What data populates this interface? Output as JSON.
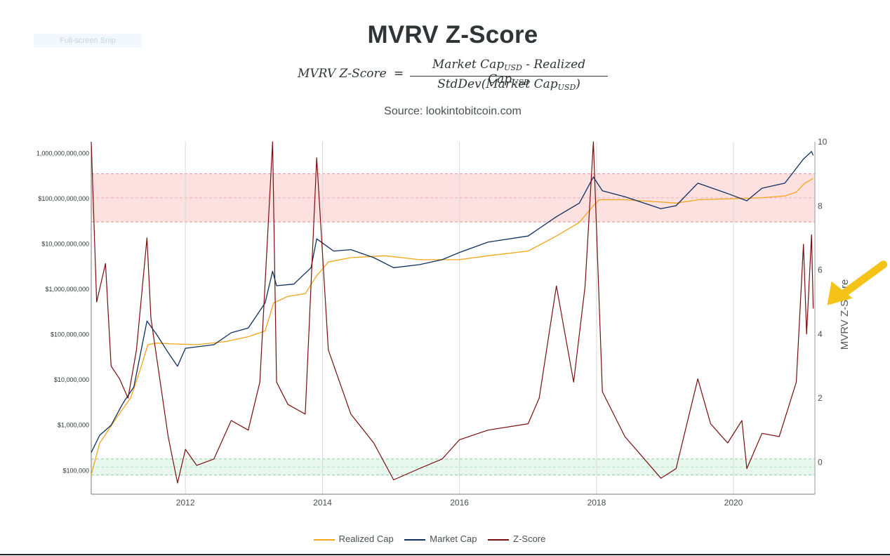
{
  "page": {
    "snip_label": "Full-screen Snip"
  },
  "header": {
    "title": "MVRV Z-Score",
    "formula": {
      "lhs": "MVRV Z-Score",
      "eq": "=",
      "num_a": "Market Cap",
      "num_op": " - ",
      "num_b": "Realized Cap",
      "den_a": "StdDev(Market Cap",
      "den_close": ")",
      "sub": "USD"
    },
    "source": "Source: lookintobitcoin.com"
  },
  "chart_data": {
    "type": "line",
    "title": "MVRV Z-Score",
    "subtitle": "Source: lookintobitcoin.com",
    "xlabel": "",
    "ylabel_left": "",
    "ylabel_right": "MVRV Z-Score",
    "x_range": [
      "2010-08-17",
      "2021-03-10"
    ],
    "x_ticks": [
      {
        "label": "2012",
        "date": "2012-01-01"
      },
      {
        "label": "2014",
        "date": "2014-01-01"
      },
      {
        "label": "2016",
        "date": "2016-01-01"
      },
      {
        "label": "2018",
        "date": "2018-01-01"
      },
      {
        "label": "2020",
        "date": "2020-01-01"
      }
    ],
    "left_axis": {
      "scale": "log",
      "range": [
        30000,
        1800000000000
      ],
      "ticks": [
        {
          "label": "$100,000",
          "value": 100000
        },
        {
          "label": "$1,000,000",
          "value": 1000000
        },
        {
          "label": "$10,000,000",
          "value": 10000000
        },
        {
          "label": "$100,000,000",
          "value": 100000000
        },
        {
          "label": "$1,000,000,000",
          "value": 1000000000
        },
        {
          "label": "$10,000,000,000",
          "value": 10000000000
        },
        {
          "label": "$100,000,000,000",
          "value": 100000000000
        },
        {
          "label": "1,000,000,000,000",
          "value": 1000000000000
        }
      ]
    },
    "right_axis": {
      "scale": "linear",
      "range": [
        -1.0,
        10.0
      ],
      "ticks": [
        0,
        2,
        4,
        6,
        8,
        10
      ]
    },
    "grid_x": true,
    "bands": [
      {
        "zone": "red",
        "from": 7.5,
        "to": 9.0,
        "mid": 8.25,
        "color": "#fde0e0",
        "line": "#e0868a"
      },
      {
        "zone": "green",
        "from": -0.4,
        "to": 0.1,
        "mid": -0.15,
        "color": "#e8f8ef",
        "line": "#7ccf96"
      }
    ],
    "legend_position": "bottom-center",
    "annotation": {
      "type": "arrow",
      "color": "#f5c218",
      "points_to": {
        "date": "2021-03-01",
        "z": 4.9
      }
    },
    "series": [
      {
        "name": "Realized Cap",
        "color": "#f4a518",
        "axis": "left",
        "points": [
          [
            "2010-08-17",
            80000
          ],
          [
            "2010-10-01",
            400000
          ],
          [
            "2011-01-01",
            1500000
          ],
          [
            "2011-03-15",
            4000000
          ],
          [
            "2011-05-01",
            15000000
          ],
          [
            "2011-06-15",
            60000000
          ],
          [
            "2011-08-01",
            65000000
          ],
          [
            "2011-11-01",
            62000000
          ],
          [
            "2012-03-01",
            60000000
          ],
          [
            "2012-08-01",
            70000000
          ],
          [
            "2012-12-01",
            90000000
          ],
          [
            "2013-03-01",
            120000000
          ],
          [
            "2013-04-15",
            500000000
          ],
          [
            "2013-07-01",
            700000000
          ],
          [
            "2013-10-01",
            800000000
          ],
          [
            "2013-12-01",
            2000000000
          ],
          [
            "2014-02-01",
            4000000000
          ],
          [
            "2014-06-01",
            5000000000
          ],
          [
            "2014-12-01",
            5500000000
          ],
          [
            "2015-06-01",
            4500000000
          ],
          [
            "2016-01-01",
            4500000000
          ],
          [
            "2016-06-01",
            5500000000
          ],
          [
            "2017-01-01",
            7000000000
          ],
          [
            "2017-06-01",
            15000000000
          ],
          [
            "2017-10-01",
            30000000000
          ],
          [
            "2017-12-15",
            70000000000
          ],
          [
            "2018-01-15",
            95000000000
          ],
          [
            "2018-06-01",
            95000000000
          ],
          [
            "2018-12-01",
            85000000000
          ],
          [
            "2019-03-01",
            80000000000
          ],
          [
            "2019-07-01",
            95000000000
          ],
          [
            "2020-01-01",
            100000000000
          ],
          [
            "2020-06-01",
            105000000000
          ],
          [
            "2020-10-01",
            115000000000
          ],
          [
            "2020-12-01",
            140000000000
          ],
          [
            "2021-01-15",
            220000000000
          ],
          [
            "2021-03-01",
            280000000000
          ]
        ]
      },
      {
        "name": "Market Cap",
        "color": "#0e2f5e",
        "axis": "left",
        "points": [
          [
            "2010-08-17",
            250000
          ],
          [
            "2010-10-01",
            600000
          ],
          [
            "2010-12-01",
            1000000
          ],
          [
            "2011-02-01",
            3000000
          ],
          [
            "2011-04-01",
            7000000
          ],
          [
            "2011-06-10",
            200000000
          ],
          [
            "2011-08-01",
            100000000
          ],
          [
            "2011-10-01",
            40000000
          ],
          [
            "2011-11-20",
            20000000
          ],
          [
            "2012-01-01",
            50000000
          ],
          [
            "2012-06-01",
            60000000
          ],
          [
            "2012-09-01",
            110000000
          ],
          [
            "2012-12-01",
            140000000
          ],
          [
            "2013-03-01",
            500000000
          ],
          [
            "2013-04-10",
            2500000000
          ],
          [
            "2013-05-01",
            1200000000
          ],
          [
            "2013-08-01",
            1300000000
          ],
          [
            "2013-11-01",
            3000000000
          ],
          [
            "2013-12-01",
            13000000000
          ],
          [
            "2014-03-01",
            7000000000
          ],
          [
            "2014-06-01",
            7500000000
          ],
          [
            "2014-10-01",
            5000000000
          ],
          [
            "2015-01-15",
            3000000000
          ],
          [
            "2015-06-01",
            3500000000
          ],
          [
            "2015-10-01",
            4500000000
          ],
          [
            "2016-01-01",
            6500000000
          ],
          [
            "2016-06-01",
            11000000000
          ],
          [
            "2017-01-01",
            15000000000
          ],
          [
            "2017-06-01",
            40000000000
          ],
          [
            "2017-10-01",
            80000000000
          ],
          [
            "2017-12-15",
            300000000000
          ],
          [
            "2018-02-01",
            150000000000
          ],
          [
            "2018-06-01",
            110000000000
          ],
          [
            "2018-12-10",
            60000000000
          ],
          [
            "2019-03-01",
            70000000000
          ],
          [
            "2019-06-25",
            220000000000
          ],
          [
            "2019-12-01",
            130000000000
          ],
          [
            "2020-03-12",
            90000000000
          ],
          [
            "2020-06-01",
            170000000000
          ],
          [
            "2020-10-01",
            220000000000
          ],
          [
            "2021-01-08",
            750000000000
          ],
          [
            "2021-02-20",
            1100000000000
          ],
          [
            "2021-03-01",
            900000000000
          ]
        ]
      },
      {
        "name": "Z-Score",
        "color": "#7a0d0d",
        "axis": "right",
        "points": [
          [
            "2010-08-17",
            10.0
          ],
          [
            "2010-09-15",
            5.0
          ],
          [
            "2010-11-01",
            6.2
          ],
          [
            "2010-12-01",
            3.0
          ],
          [
            "2011-01-15",
            2.6
          ],
          [
            "2011-03-01",
            2.0
          ],
          [
            "2011-04-15",
            3.5
          ],
          [
            "2011-06-10",
            7.0
          ],
          [
            "2011-07-01",
            4.5
          ],
          [
            "2011-08-20",
            2.5
          ],
          [
            "2011-10-01",
            0.8
          ],
          [
            "2011-11-20",
            -0.65
          ],
          [
            "2012-01-01",
            0.4
          ],
          [
            "2012-03-01",
            -0.1
          ],
          [
            "2012-06-01",
            0.1
          ],
          [
            "2012-09-01",
            1.3
          ],
          [
            "2012-12-01",
            1.0
          ],
          [
            "2013-02-01",
            2.5
          ],
          [
            "2013-04-10",
            10.0
          ],
          [
            "2013-05-01",
            2.5
          ],
          [
            "2013-07-01",
            1.8
          ],
          [
            "2013-10-01",
            1.5
          ],
          [
            "2013-12-01",
            9.5
          ],
          [
            "2014-02-01",
            3.5
          ],
          [
            "2014-06-01",
            1.5
          ],
          [
            "2014-10-01",
            0.6
          ],
          [
            "2015-01-15",
            -0.55
          ],
          [
            "2015-06-01",
            -0.2
          ],
          [
            "2015-10-01",
            0.1
          ],
          [
            "2016-01-01",
            0.7
          ],
          [
            "2016-06-01",
            1.0
          ],
          [
            "2017-01-01",
            1.2
          ],
          [
            "2017-03-01",
            2.0
          ],
          [
            "2017-06-01",
            5.5
          ],
          [
            "2017-09-01",
            2.5
          ],
          [
            "2017-11-01",
            5.5
          ],
          [
            "2017-12-15",
            10.0
          ],
          [
            "2018-02-01",
            2.2
          ],
          [
            "2018-06-01",
            0.8
          ],
          [
            "2018-12-10",
            -0.5
          ],
          [
            "2019-03-01",
            -0.2
          ],
          [
            "2019-06-25",
            2.6
          ],
          [
            "2019-09-01",
            1.2
          ],
          [
            "2019-12-01",
            0.6
          ],
          [
            "2020-02-15",
            1.3
          ],
          [
            "2020-03-12",
            -0.2
          ],
          [
            "2020-06-01",
            0.9
          ],
          [
            "2020-09-01",
            0.8
          ],
          [
            "2020-12-01",
            2.5
          ],
          [
            "2021-01-08",
            6.8
          ],
          [
            "2021-01-25",
            4.0
          ],
          [
            "2021-02-20",
            7.1
          ],
          [
            "2021-03-01",
            4.8
          ]
        ]
      }
    ]
  }
}
